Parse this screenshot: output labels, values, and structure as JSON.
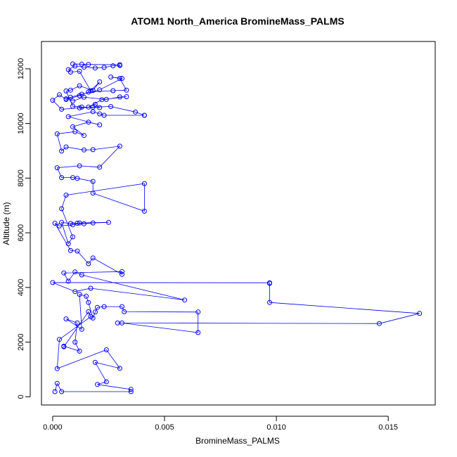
{
  "chart_data": {
    "type": "line",
    "title": "ATOM1 North_America BromineMass_PALMS",
    "xlabel": "BromineMass_PALMS",
    "ylabel": "Altitude (m)",
    "xlim": [
      -0.0005,
      0.0171
    ],
    "ylim": [
      -300,
      13000
    ],
    "xticks": [
      0,
      0.005,
      0.01,
      0.015
    ],
    "xtick_labels": [
      "0.000",
      "0.005",
      "0.010",
      "0.015"
    ],
    "yticks": [
      0,
      2000,
      4000,
      6000,
      8000,
      10000,
      12000
    ],
    "ytick_labels": [
      "0",
      "2000",
      "4000",
      "6000",
      "8000",
      "10000",
      "12000"
    ],
    "grid": false,
    "marker": "open-circle",
    "line_color": "#0000ff",
    "series": [
      {
        "x": [
          0.0001,
          0.0002,
          0.0004,
          0.0035,
          0.0035,
          0.002,
          0.0024,
          0.0019,
          0.003,
          0.0024,
          0.0002,
          0.0003,
          0.0017,
          0.0016,
          0.0005,
          0.0005,
          0.0012,
          0.001,
          0.0011,
          0.0006,
          0.0013,
          0.0012,
          0.0015,
          0.0016,
          0.0018,
          0.0019,
          0.002,
          0.0023,
          0.0031,
          0.0032,
          0.0065,
          0.0065,
          0.0031,
          0.0029,
          0.0146,
          0.0164,
          0.0097,
          0.0097,
          0.0097,
          0.0,
          0.001,
          0.0017,
          0.0059,
          0.0013,
          0.001,
          0.0007,
          0.0005,
          0.0031,
          0.0031,
          0.0018,
          0.0016,
          0.0011,
          0.0008,
          0.0001,
          0.0003,
          0.0009,
          0.0012,
          0.0025,
          0.0018,
          0.0014,
          0.0011,
          0.0008,
          0.0004,
          0.0007,
          0.0009,
          0.0004,
          0.0006,
          0.0041,
          0.0041,
          0.0018,
          0.0018,
          0.0011,
          0.0009,
          0.0004,
          0.0002,
          0.0012,
          0.0021,
          0.003,
          0.0018,
          0.0014,
          0.0006,
          0.0004,
          0.0002,
          0.001,
          0.0014,
          0.0009,
          0.0016,
          0.0021,
          0.0007,
          0.0018,
          0.0021,
          0.0023,
          0.0041,
          0.0041,
          0.0037,
          0.0026,
          0.0018,
          0.0012,
          0.0004,
          0.0,
          0.0003,
          0.0006,
          0.0012,
          0.0016,
          0.0027,
          0.0033,
          0.003,
          0.0026,
          0.0031,
          0.0021,
          0.0013,
          0.0008,
          0.0006,
          0.0009,
          0.0014,
          0.0024,
          0.003,
          0.0033,
          0.0022,
          0.0016,
          0.0019,
          0.0021,
          0.0013,
          0.0009,
          0.0006,
          0.0008,
          0.0012,
          0.0018,
          0.0021,
          0.0017,
          0.0012,
          0.0008,
          0.0007,
          0.001,
          0.0014,
          0.0019,
          0.0023,
          0.0027,
          0.003,
          0.003,
          0.0016,
          0.0013,
          0.0009
        ],
        "y": [
          190,
          490,
          190,
          190,
          270,
          450,
          550,
          1260,
          1040,
          1720,
          1030,
          2100,
          2930,
          3110,
          1830,
          1850,
          1670,
          2000,
          2700,
          2850,
          2470,
          3750,
          3680,
          3450,
          2880,
          3100,
          3270,
          3300,
          3300,
          3110,
          3100,
          2350,
          2700,
          2700,
          2680,
          3050,
          3450,
          4150,
          4170,
          4180,
          3850,
          3970,
          3540,
          4460,
          4570,
          4230,
          4530,
          4580,
          4480,
          5080,
          4870,
          5330,
          5350,
          6350,
          6250,
          6290,
          6360,
          6380,
          6360,
          6330,
          6350,
          6340,
          6380,
          5600,
          5850,
          6880,
          7380,
          7800,
          6790,
          7450,
          7880,
          7990,
          8020,
          8020,
          8380,
          8450,
          8400,
          9170,
          9040,
          9030,
          9140,
          8990,
          9620,
          9700,
          9560,
          9880,
          10050,
          9950,
          10250,
          10430,
          10350,
          10300,
          10300,
          10300,
          10420,
          10620,
          10600,
          10570,
          10520,
          10850,
          11050,
          10880,
          11020,
          11150,
          11200,
          11220,
          11650,
          11700,
          11650,
          11230,
          11070,
          10960,
          10900,
          10820,
          10960,
          10880,
          10970,
          10980,
          10870,
          10600,
          10700,
          10580,
          10600,
          10630,
          11190,
          11220,
          11380,
          11210,
          11520,
          11200,
          11910,
          11880,
          11970,
          12100,
          12060,
          12030,
          12050,
          12110,
          12120,
          12150,
          12160,
          12170,
          12180
        ]
      }
    ]
  }
}
